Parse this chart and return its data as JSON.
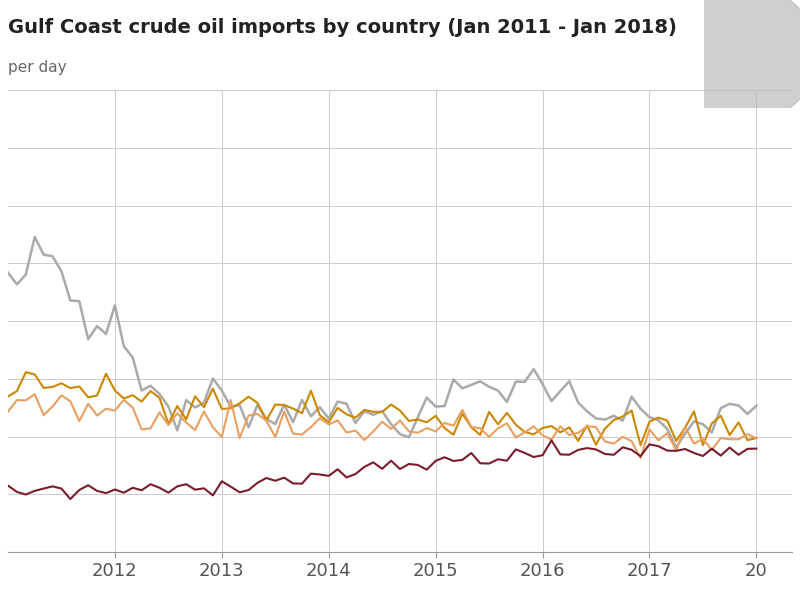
{
  "title": "Gulf Coast crude oil imports by country (Jan 2011 - Jan 2018)",
  "subtitle": "per day",
  "title_color": "#222222",
  "bg_color": "#ffffff",
  "grid_color": "#cccccc",
  "year_ticks": [
    12,
    24,
    36,
    48,
    60,
    72,
    84
  ],
  "year_labels": [
    "2012",
    "2013",
    "2014",
    "2015",
    "2016",
    "2017",
    "20"
  ],
  "colors": {
    "saudi": "#aaaaaa",
    "mexico": "#cc8800",
    "venezuela": "#e8a060",
    "canada": "#7b1c2c"
  },
  "ylim": [
    0,
    2000
  ],
  "n_points": 85,
  "title_fontsize": 14,
  "subtitle_fontsize": 11,
  "tick_fontsize": 13
}
